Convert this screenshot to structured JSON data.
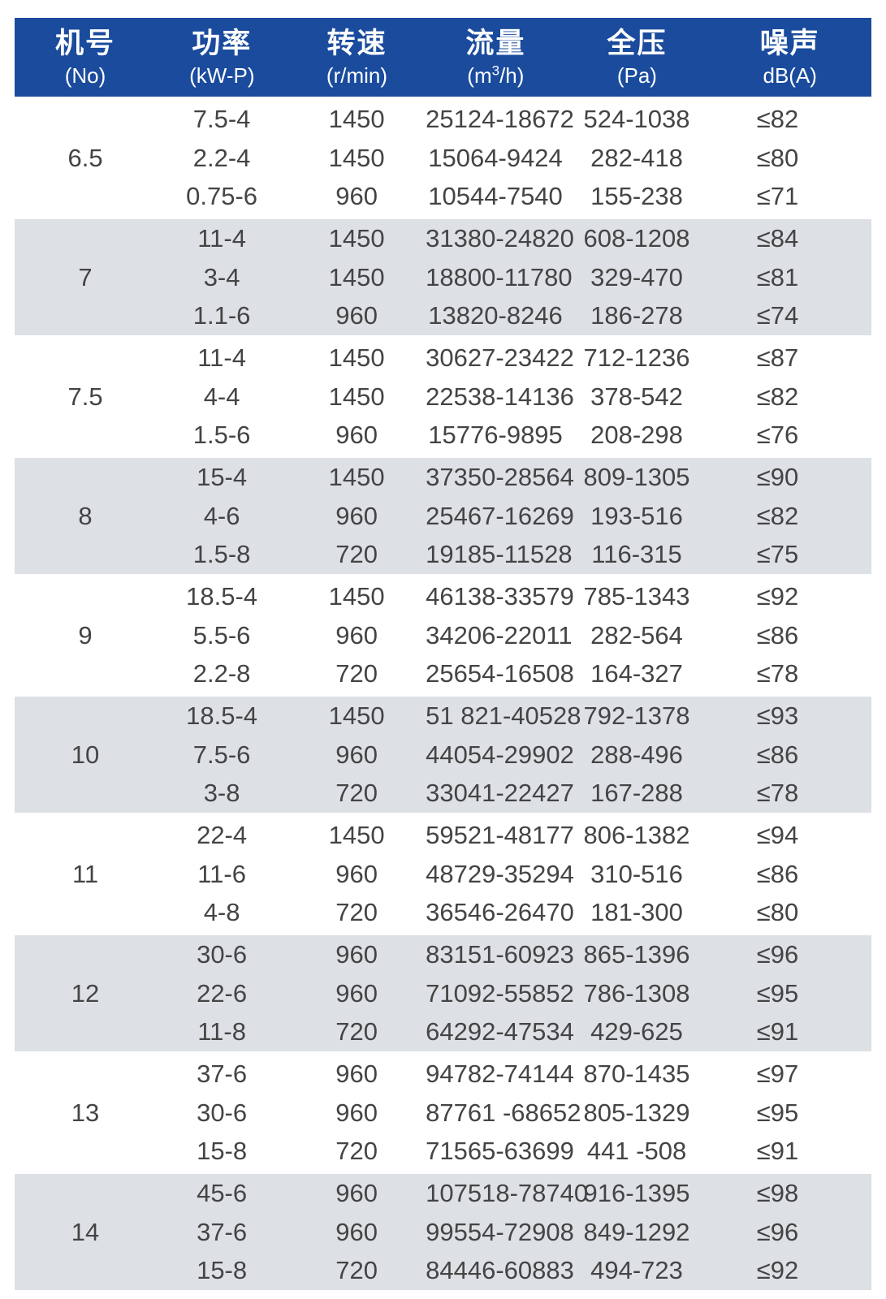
{
  "table_title": "fan-performance-specification-table",
  "colors": {
    "header_bg": "#1a4b9d",
    "band_gray": "#dde1e5",
    "band_white": "#ffffff",
    "header_text": "#ffffff",
    "data_text": "#444444"
  },
  "header": {
    "columns": [
      {
        "label": "机号",
        "unit": "(No)"
      },
      {
        "label": "功率",
        "unit": "(kW-P)"
      },
      {
        "label": "转速",
        "unit": "(r/min)"
      },
      {
        "label": "流量",
        "unit_parts": {
          "pre": "(m",
          "sup": "3",
          "post": "/h)"
        }
      },
      {
        "label": "全压",
        "unit": "(Pa)"
      },
      {
        "label": "噪声",
        "unit": "dB(A)"
      }
    ]
  },
  "groups": [
    {
      "no": "6.5",
      "rows": [
        [
          "7.5-4",
          "1450",
          "25124-18672",
          "524-1038",
          "≤82"
        ],
        [
          "2.2-4",
          "1450",
          "15064-9424",
          "282-418",
          "≤80"
        ],
        [
          "0.75-6",
          "960",
          "10544-7540",
          "155-238",
          "≤71"
        ]
      ]
    },
    {
      "no": "7",
      "rows": [
        [
          "11-4",
          "1450",
          "31380-24820",
          "608-1208",
          "≤84"
        ],
        [
          "3-4",
          "1450",
          "18800-11780",
          "329-470",
          "≤81"
        ],
        [
          "1.1-6",
          "960",
          "13820-8246",
          "186-278",
          "≤74"
        ]
      ]
    },
    {
      "no": "7.5",
      "rows": [
        [
          "11-4",
          "1450",
          "30627-23422",
          "712-1236",
          "≤87"
        ],
        [
          "4-4",
          "1450",
          "22538-14136",
          "378-542",
          "≤82"
        ],
        [
          "1.5-6",
          "960",
          "15776-9895",
          "208-298",
          "≤76"
        ]
      ]
    },
    {
      "no": "8",
      "rows": [
        [
          "15-4",
          "1450",
          "37350-28564",
          "809-1305",
          "≤90"
        ],
        [
          "4-6",
          "960",
          "25467-16269",
          "193-516",
          "≤82"
        ],
        [
          "1.5-8",
          "720",
          "19185-11528",
          "116-315",
          "≤75"
        ]
      ]
    },
    {
      "no": "9",
      "rows": [
        [
          "18.5-4",
          "1450",
          "46138-33579",
          "785-1343",
          "≤92"
        ],
        [
          "5.5-6",
          "960",
          "34206-22011",
          "282-564",
          "≤86"
        ],
        [
          "2.2-8",
          "720",
          "25654-16508",
          "164-327",
          "≤78"
        ]
      ]
    },
    {
      "no": "10",
      "rows": [
        [
          "18.5-4",
          "1450",
          "51 821-40528",
          "792-1378",
          "≤93"
        ],
        [
          "7.5-6",
          "960",
          "44054-29902",
          "288-496",
          "≤86"
        ],
        [
          "3-8",
          "720",
          "33041-22427",
          "167-288",
          "≤78"
        ]
      ]
    },
    {
      "no": "11",
      "rows": [
        [
          "22-4",
          "1450",
          "59521-48177",
          "806-1382",
          "≤94"
        ],
        [
          "11-6",
          "960",
          "48729-35294",
          "310-516",
          "≤86"
        ],
        [
          "4-8",
          "720",
          "36546-26470",
          "181-300",
          "≤80"
        ]
      ]
    },
    {
      "no": "12",
      "rows": [
        [
          "30-6",
          "960",
          "83151-60923",
          "865-1396",
          "≤96"
        ],
        [
          "22-6",
          "960",
          "71092-55852",
          "786-1308",
          "≤95"
        ],
        [
          "11-8",
          "720",
          "64292-47534",
          "429-625",
          "≤91"
        ]
      ]
    },
    {
      "no": "13",
      "rows": [
        [
          "37-6",
          "960",
          "94782-74144",
          "870-1435",
          "≤97"
        ],
        [
          "30-6",
          "960",
          "87761 -68652",
          "805-1329",
          "≤95"
        ],
        [
          "15-8",
          "720",
          "71565-63699",
          "441 -508",
          "≤91"
        ]
      ]
    },
    {
      "no": "14",
      "rows": [
        [
          "45-6",
          "960",
          "107518-78740",
          "916-1395",
          "≤98"
        ],
        [
          "37-6",
          "960",
          "99554-72908",
          "849-1292",
          "≤96"
        ],
        [
          "15-8",
          "720",
          "84446-60883",
          "494-723",
          "≤92"
        ]
      ]
    }
  ]
}
